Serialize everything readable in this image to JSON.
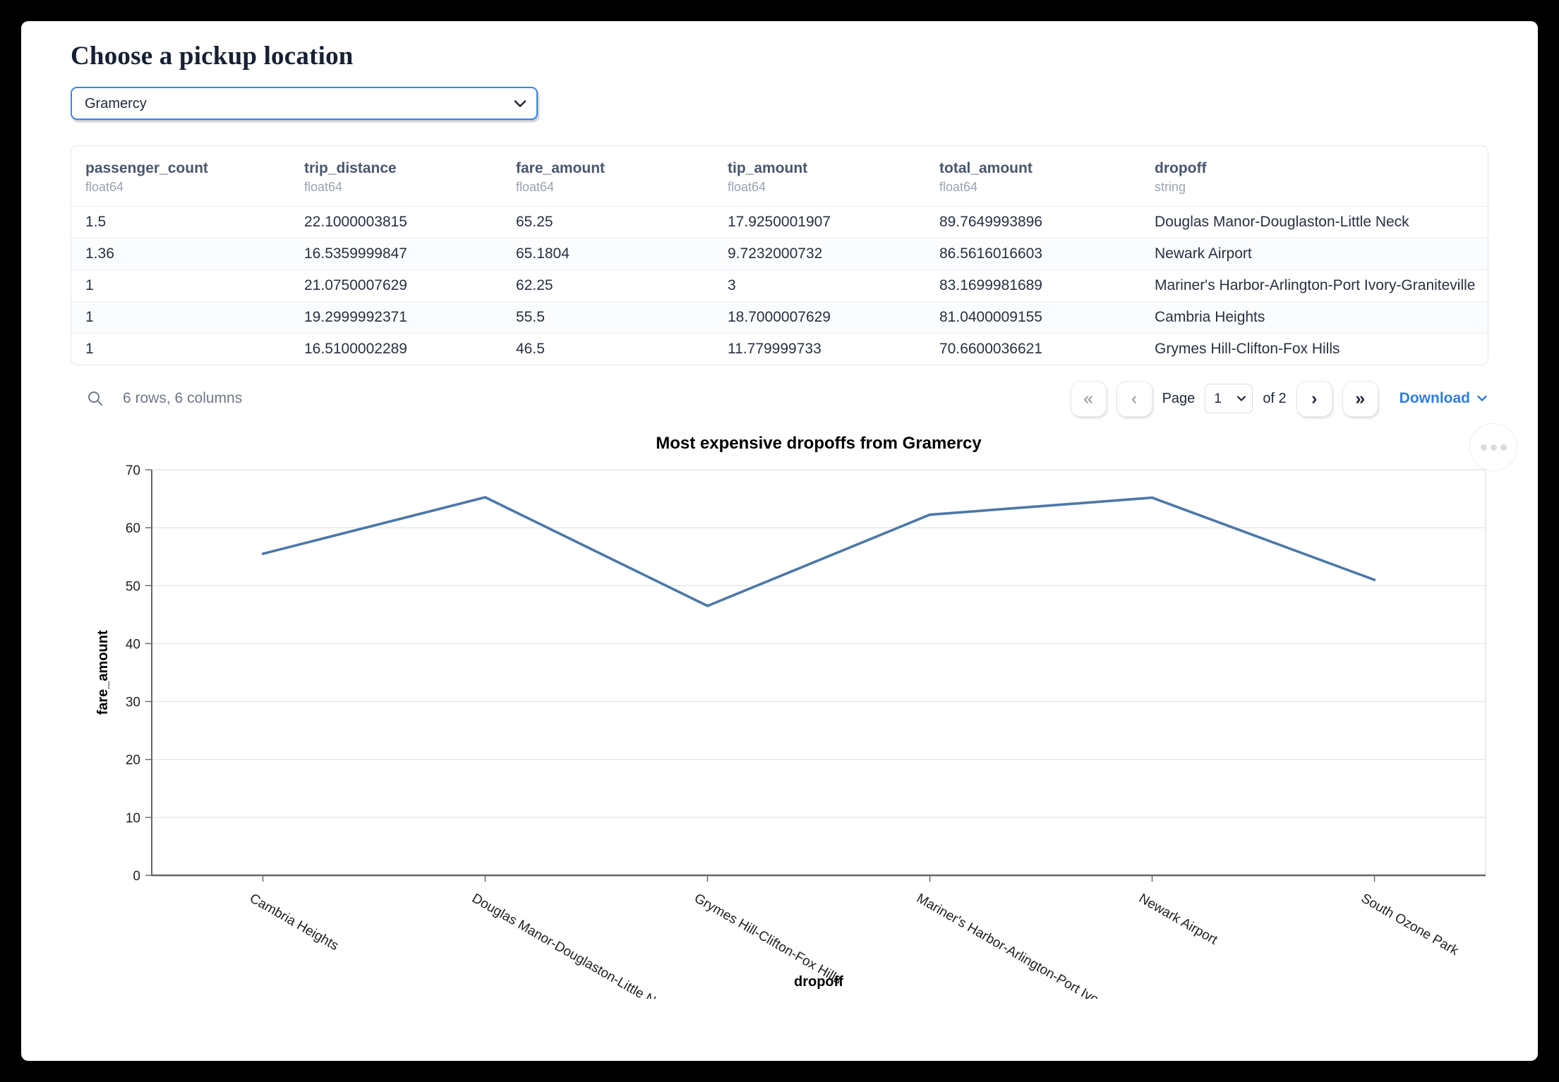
{
  "header": {
    "title": "Choose a pickup location"
  },
  "picker": {
    "value": "Gramercy"
  },
  "table": {
    "columns": [
      {
        "name": "passenger_count",
        "type": "float64"
      },
      {
        "name": "trip_distance",
        "type": "float64"
      },
      {
        "name": "fare_amount",
        "type": "float64"
      },
      {
        "name": "tip_amount",
        "type": "float64"
      },
      {
        "name": "total_amount",
        "type": "float64"
      },
      {
        "name": "dropoff",
        "type": "string"
      }
    ],
    "rows": [
      [
        "1.5",
        "22.1000003815",
        "65.25",
        "17.9250001907",
        "89.7649993896",
        "Douglas Manor-Douglaston-Little Neck"
      ],
      [
        "1.36",
        "16.5359999847",
        "65.1804",
        "9.7232000732",
        "86.5616016603",
        "Newark Airport"
      ],
      [
        "1",
        "21.0750007629",
        "62.25",
        "3",
        "83.1699981689",
        "Mariner's Harbor-Arlington-Port Ivory-Graniteville"
      ],
      [
        "1",
        "19.2999992371",
        "55.5",
        "18.7000007629",
        "81.0400009155",
        "Cambria Heights"
      ],
      [
        "1",
        "16.5100002289",
        "46.5",
        "11.779999733",
        "70.6600036621",
        "Grymes Hill-Clifton-Fox Hills"
      ]
    ]
  },
  "table_footer": {
    "summary": "6 rows, 6 columns",
    "first_label": "«",
    "prev_label": "‹",
    "next_label": "›",
    "last_label": "»",
    "page_label": "Page",
    "page_value": "1",
    "page_total": "of 2",
    "download_label": "Download"
  },
  "colors": {
    "accent_blue": "#3b82f6",
    "link_blue": "#2f7de1",
    "line_blue": "#4c78a8"
  },
  "chart_data": {
    "type": "line",
    "title": "Most expensive dropoffs from Gramercy",
    "xlabel": "dropoff",
    "ylabel": "fare_amount",
    "categories": [
      "Cambria Heights",
      "Douglas Manor-Douglaston-Little Neck",
      "Grymes Hill-Clifton-Fox Hills",
      "Mariner's Harbor-Arlington-Port Ivory-Graniteville",
      "Newark Airport",
      "South Ozone Park"
    ],
    "tick_labels": [
      "Cambria Heights",
      "Douglas Manor-Douglaston-Little Neck",
      "Grymes Hill-Clifton-Fox Hills",
      "Mariner's Harbor-Arlington-Port Ivory-…",
      "Newark Airport",
      "South Ozone Park"
    ],
    "values": [
      55.5,
      65.25,
      46.5,
      62.25,
      65.1804,
      51
    ],
    "ylim": [
      0,
      70
    ],
    "yticks": [
      0,
      10,
      20,
      30,
      40,
      50,
      60,
      70
    ],
    "grid": true,
    "legend": "none",
    "line_color": "#4c78a8"
  }
}
